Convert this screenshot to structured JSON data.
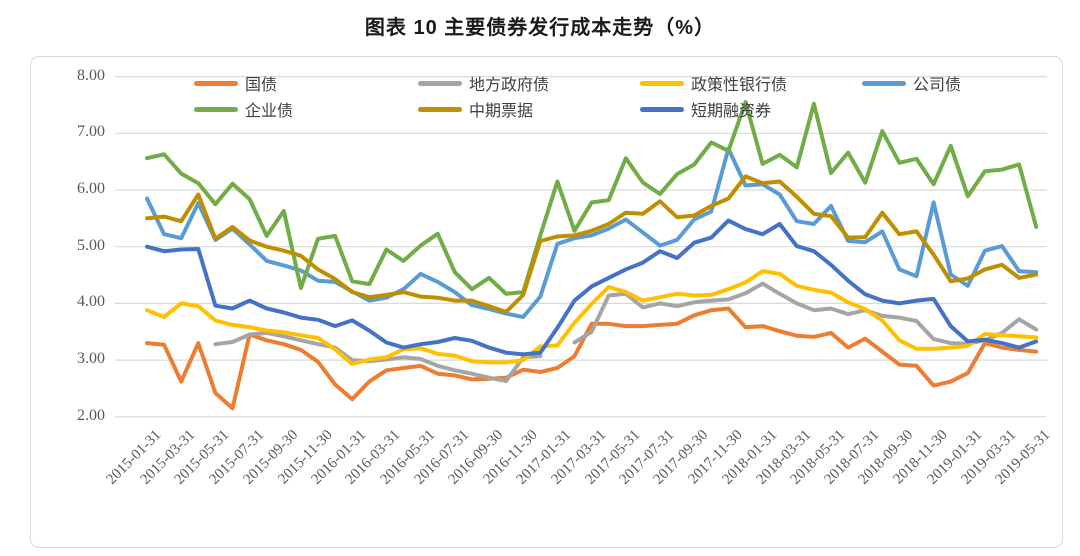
{
  "title": "图表 10 主要债券发行成本走势（%）",
  "theme": {
    "background": "#ffffff",
    "border": "#d9d9d9",
    "grid": "#d9d9d9",
    "axis_text": "#595959",
    "title_text": "#1a1a1a"
  },
  "chart_data": {
    "type": "line",
    "title": "图表 10 主要债券发行成本走势（%）",
    "unit": "%",
    "xlabel": "",
    "ylabel": "",
    "ylim": [
      2,
      8
    ],
    "y_ticks": [
      "8.00",
      "7.00",
      "6.00",
      "5.00",
      "4.00",
      "3.00",
      "2.00"
    ],
    "grid": "horizontal",
    "legend_position": "top-inside",
    "x_tick_every": 2,
    "categories": [
      "2015-01-31",
      "2015-02-28",
      "2015-03-31",
      "2015-04-30",
      "2015-05-31",
      "2015-06-30",
      "2015-07-31",
      "2015-08-31",
      "2015-09-30",
      "2015-10-31",
      "2015-11-30",
      "2015-12-31",
      "2016-01-31",
      "2016-02-29",
      "2016-03-31",
      "2016-04-30",
      "2016-05-31",
      "2016-06-30",
      "2016-07-31",
      "2016-08-31",
      "2016-09-30",
      "2016-10-31",
      "2016-11-30",
      "2016-12-31",
      "2017-01-31",
      "2017-02-28",
      "2017-03-31",
      "2017-04-30",
      "2017-05-31",
      "2017-06-30",
      "2017-07-31",
      "2017-08-31",
      "2017-09-30",
      "2017-10-31",
      "2017-11-30",
      "2017-12-31",
      "2018-01-31",
      "2018-02-28",
      "2018-03-31",
      "2018-04-30",
      "2018-05-31",
      "2018-06-30",
      "2018-07-31",
      "2018-08-31",
      "2018-09-30",
      "2018-10-31",
      "2018-11-30",
      "2018-12-31",
      "2019-01-31",
      "2019-02-28",
      "2019-03-31",
      "2019-04-30",
      "2019-05-31"
    ],
    "series": [
      {
        "id": "treasury",
        "name": "国债",
        "color": "#ED7D31",
        "values": [
          3.3,
          3.27,
          2.62,
          3.3,
          2.42,
          2.15,
          3.45,
          3.35,
          3.28,
          3.18,
          2.97,
          2.57,
          2.31,
          2.62,
          2.82,
          2.86,
          2.9,
          2.76,
          2.73,
          2.66,
          2.67,
          2.69,
          2.83,
          2.79,
          2.86,
          3.07,
          3.64,
          3.64,
          3.6,
          3.6,
          3.62,
          3.64,
          3.79,
          3.88,
          3.91,
          3.58,
          3.6,
          3.51,
          3.43,
          3.41,
          3.48,
          3.22,
          3.38,
          3.15,
          2.92,
          2.9,
          2.55,
          2.62,
          2.77,
          3.3,
          3.22,
          3.18,
          3.15
        ]
      },
      {
        "id": "local-gov-bond",
        "name": "地方政府债",
        "color": "#A5A5A5",
        "values": [
          null,
          null,
          null,
          null,
          3.28,
          3.32,
          3.45,
          3.48,
          3.42,
          3.35,
          3.28,
          3.22,
          3.0,
          2.98,
          3.01,
          3.05,
          3.02,
          2.9,
          2.82,
          2.76,
          2.69,
          2.63,
          3.05,
          3.07,
          null,
          3.31,
          3.5,
          4.14,
          4.17,
          3.93,
          4.0,
          3.95,
          4.02,
          4.05,
          4.07,
          4.18,
          4.35,
          4.17,
          4.0,
          3.88,
          3.91,
          3.81,
          3.88,
          3.78,
          3.75,
          3.69,
          3.37,
          3.3,
          3.29,
          3.35,
          3.48,
          3.72,
          3.54
        ]
      },
      {
        "id": "policy-bank-bond",
        "name": "政策性银行债",
        "color": "#FFC000",
        "values": [
          3.88,
          3.76,
          4.0,
          3.95,
          3.7,
          3.62,
          3.58,
          3.52,
          3.49,
          3.44,
          3.39,
          3.19,
          2.93,
          3.01,
          3.05,
          3.19,
          3.21,
          3.11,
          3.08,
          2.98,
          2.96,
          2.96,
          3.0,
          3.24,
          3.26,
          3.66,
          3.99,
          4.29,
          4.2,
          4.05,
          4.11,
          4.17,
          4.14,
          4.15,
          4.25,
          4.37,
          4.57,
          4.52,
          4.31,
          4.24,
          4.19,
          4.02,
          3.9,
          3.7,
          3.35,
          3.2,
          3.2,
          3.22,
          3.25,
          3.46,
          3.44,
          3.42,
          3.4
        ]
      },
      {
        "id": "corporate-bond",
        "name": "公司债",
        "color": "#5B9BD5",
        "values": [
          5.85,
          5.22,
          5.15,
          5.77,
          5.12,
          5.32,
          5.04,
          4.75,
          4.67,
          4.58,
          4.4,
          4.38,
          4.21,
          4.05,
          4.1,
          4.25,
          4.52,
          4.38,
          4.2,
          3.97,
          3.9,
          3.82,
          3.76,
          4.12,
          5.05,
          5.15,
          5.2,
          5.32,
          5.48,
          5.25,
          5.02,
          5.12,
          5.48,
          5.62,
          6.73,
          6.08,
          6.1,
          5.92,
          5.45,
          5.4,
          5.72,
          5.1,
          5.08,
          5.27,
          4.6,
          4.48,
          5.78,
          4.51,
          4.31,
          4.93,
          5.01,
          4.57,
          4.55
        ]
      },
      {
        "id": "enterprise-bond",
        "name": "企业债",
        "color": "#70AD47",
        "values": [
          6.56,
          6.63,
          6.29,
          6.12,
          5.75,
          6.11,
          5.84,
          5.19,
          5.63,
          4.27,
          5.14,
          5.19,
          4.39,
          4.34,
          4.95,
          4.75,
          5.02,
          5.23,
          4.55,
          4.25,
          4.45,
          4.17,
          4.2,
          5.2,
          6.15,
          5.28,
          5.78,
          5.82,
          6.56,
          6.13,
          5.93,
          6.28,
          6.45,
          6.84,
          6.69,
          7.55,
          6.46,
          6.62,
          6.4,
          7.52,
          6.3,
          6.66,
          6.13,
          7.04,
          6.48,
          6.55,
          6.1,
          6.78,
          5.89,
          6.33,
          6.36,
          6.45,
          5.35
        ]
      },
      {
        "id": "mtn",
        "name": "中期票据",
        "color": "#BF8F00",
        "values": [
          5.5,
          5.53,
          5.45,
          5.92,
          5.14,
          5.35,
          5.11,
          5.0,
          4.93,
          4.84,
          4.6,
          4.43,
          4.2,
          4.11,
          4.15,
          4.2,
          4.12,
          4.1,
          4.05,
          4.05,
          3.95,
          3.85,
          4.15,
          5.1,
          5.18,
          5.2,
          5.28,
          5.4,
          5.6,
          5.58,
          5.8,
          5.52,
          5.55,
          5.72,
          5.85,
          6.24,
          6.12,
          6.15,
          5.88,
          5.58,
          5.54,
          5.16,
          5.17,
          5.6,
          5.22,
          5.27,
          4.86,
          4.39,
          4.44,
          4.6,
          4.68,
          4.45,
          4.51
        ]
      },
      {
        "id": "scp",
        "name": "短期融资券",
        "color": "#4472C4",
        "values": [
          5.0,
          4.92,
          4.95,
          4.96,
          3.96,
          3.91,
          4.05,
          3.91,
          3.84,
          3.75,
          3.71,
          3.6,
          3.7,
          3.52,
          3.31,
          3.22,
          3.28,
          3.32,
          3.39,
          3.34,
          3.22,
          3.13,
          3.1,
          3.13,
          3.57,
          4.05,
          4.3,
          4.45,
          4.6,
          4.72,
          4.92,
          4.8,
          5.07,
          5.16,
          5.46,
          5.31,
          5.22,
          5.4,
          5.01,
          4.92,
          4.68,
          4.4,
          4.16,
          4.05,
          4.0,
          4.05,
          4.08,
          3.6,
          3.33,
          3.36,
          3.3,
          3.22,
          3.33
        ]
      }
    ]
  }
}
